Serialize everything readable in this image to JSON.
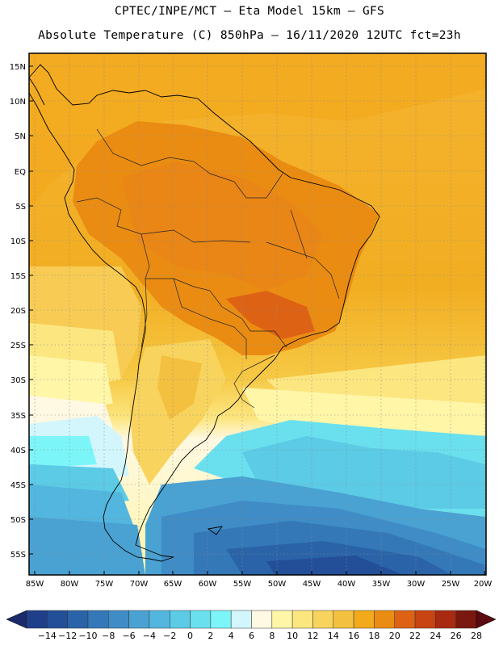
{
  "header": {
    "line1": "CPTEC/INPE/MCT –  Eta Model 15km – GFS",
    "line2": "Absolute Temperature (C) 850hPa – 16/11/2020 12UTC fct=23h"
  },
  "map": {
    "lat_labels": [
      "15N",
      "10N",
      "5N",
      "EQ",
      "5S",
      "10S",
      "15S",
      "20S",
      "25S",
      "30S",
      "35S",
      "40S",
      "45S",
      "50S",
      "55S"
    ],
    "lon_labels": [
      "85W",
      "80W",
      "75W",
      "70W",
      "65W",
      "60W",
      "55W",
      "50W",
      "45W",
      "40W",
      "35W",
      "30W",
      "25W",
      "20W"
    ]
  },
  "colorbar": {
    "labels": [
      "-14",
      "-12",
      "-10",
      "-8",
      "-6",
      "-4",
      "-2",
      "0",
      "2",
      "4",
      "6",
      "8",
      "10",
      "12",
      "14",
      "16",
      "18",
      "20",
      "22",
      "24",
      "26",
      "28"
    ],
    "colors": [
      "#1f3f8a",
      "#234f98",
      "#2a63a8",
      "#3478b8",
      "#3f8cc6",
      "#49a2d2",
      "#52b6de",
      "#5ccbe6",
      "#6ae0ee",
      "#7cf5f8",
      "#d2f6fc",
      "#fff8e2",
      "#fff6a8",
      "#fce680",
      "#f8d45e",
      "#f4c040",
      "#f2aa1a",
      "#ea8c12",
      "#de6214",
      "#c84412",
      "#a82a10",
      "#7a1810"
    ]
  }
}
